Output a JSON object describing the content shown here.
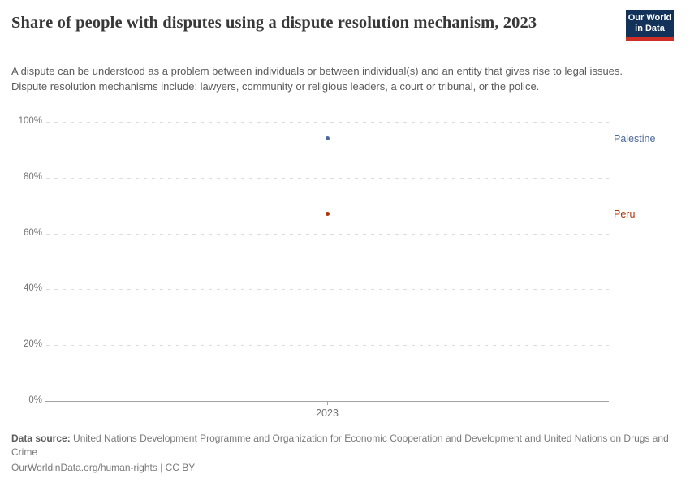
{
  "header": {
    "title": "Share of people with disputes using a dispute resolution mechanism, 2023",
    "subtitle": "A dispute can be understood as a problem between individuals or between individual(s) and an entity that gives rise to legal issues. Dispute resolution mechanisms include: lawyers, community or religious leaders, a court or tribunal, or the police.",
    "logo": {
      "line1": "Our World",
      "line2": "in Data",
      "background": "#12325a",
      "accent": "#cf2e24",
      "text_color": "#ffffff"
    }
  },
  "chart_data": {
    "type": "scatter",
    "x": [
      2023
    ],
    "xticks": [
      "2023"
    ],
    "yticks": [
      "0%",
      "20%",
      "40%",
      "60%",
      "80%",
      "100%"
    ],
    "ylim": [
      0,
      100
    ],
    "grid": "horizontal-dashed",
    "legend_position": "right-of-points",
    "series": [
      {
        "name": "Palestine",
        "values": [
          94
        ],
        "color": "#4C6A9C"
      },
      {
        "name": "Peru",
        "values": [
          67
        ],
        "color": "#B13507"
      }
    ],
    "title": "Share of people with disputes using a dispute resolution mechanism, 2023",
    "xlabel": "",
    "ylabel": ""
  },
  "footer": {
    "data_source_label": "Data source:",
    "data_source_value": " United Nations Development Programme and Organization for Economic Cooperation and Development and United Nations on Drugs and Crime",
    "license_line": "OurWorldinData.org/human-rights | CC BY"
  }
}
